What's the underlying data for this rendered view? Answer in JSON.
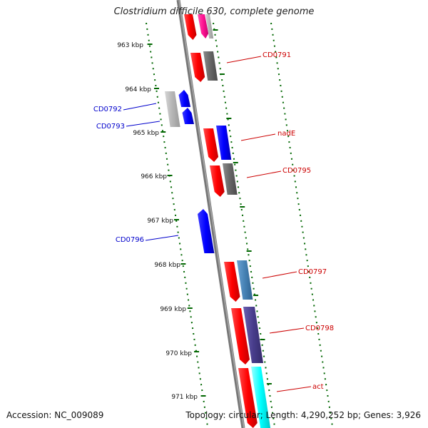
{
  "title": "Clostridium difficile 630, complete genome",
  "footer": {
    "accession": "Accession: NC_009089",
    "summary": "Topology: circular; Length: 4,290,252 bp; Genes: 3,926"
  },
  "ticks": [
    "963 kbp",
    "964 kbp",
    "965 kbp",
    "966 kbp",
    "967 kbp",
    "968 kbp",
    "969 kbp",
    "970 kbp",
    "971 kbp"
  ],
  "gene_labels": {
    "cd0791": "CD0791",
    "cd0792": "CD0792",
    "cd0793": "CD0793",
    "nade": "nadE",
    "cd0795": "CD0795",
    "cd0796": "CD0796",
    "cd0797": "CD0797",
    "cd0798": "CD0798",
    "act": "act"
  },
  "colors": {
    "forward_label": "#cc0000",
    "reverse_label": "#0000cc",
    "tick": "#006600",
    "backbone": "#777777",
    "red": "#ff0000",
    "blue": "#0000ff",
    "grey": "#666666",
    "light_grey": "#b4b4b4",
    "pink": "#ff1493",
    "steel_blue": "#4682b4",
    "slate": "#483d8b",
    "cyan": "#00ffff"
  }
}
